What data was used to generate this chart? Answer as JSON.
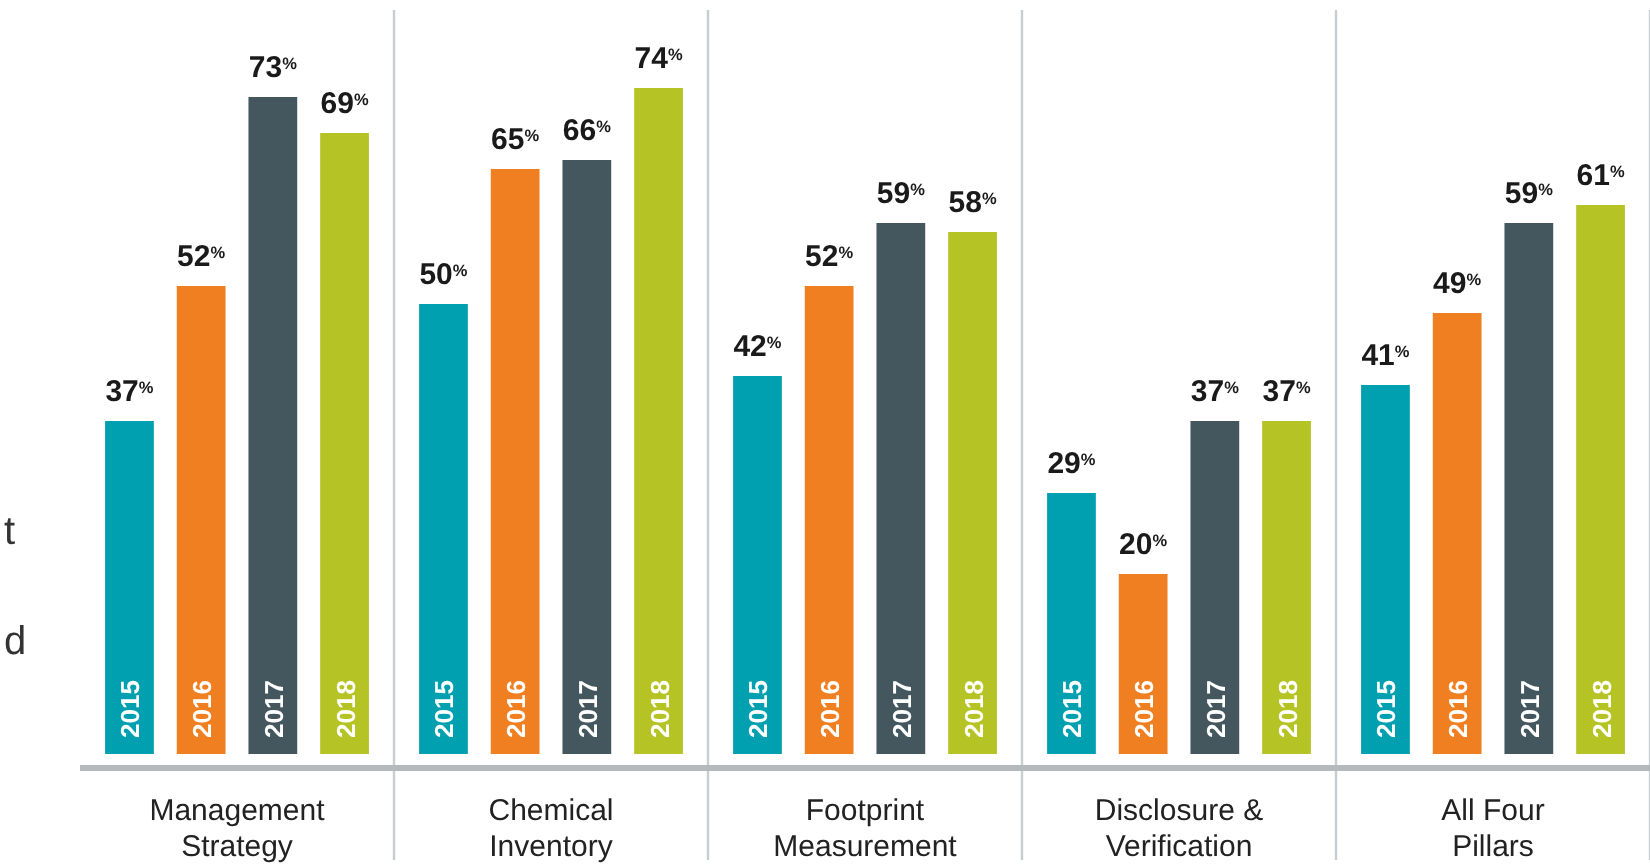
{
  "chart_data": {
    "type": "bar",
    "categories": [
      "Management Strategy",
      "Chemical Inventory",
      "Footprint Measurement",
      "Disclosure & Verification",
      "All Four Pillars"
    ],
    "series": [
      {
        "name": "2015",
        "color": "#00a0b0",
        "values": [
          37,
          50,
          42,
          29,
          41
        ],
        "value_labels": [
          "37$^{%}$",
          "50$^{%}$",
          "42$^{%}$",
          "29$^{%}$",
          "41$^{%}$"
        ]
      },
      {
        "name": "2016",
        "color": "#f07f22",
        "values": [
          52,
          65,
          52,
          20,
          49
        ],
        "value_labels": [
          "52$^{%}$",
          "65$^{%}$",
          "52$^{%}$",
          "20$^{%}$",
          "49$^{%}$"
        ]
      },
      {
        "name": "2017",
        "color": "#44575f",
        "values": [
          73,
          66,
          59,
          37,
          59
        ],
        "value_labels": [
          "73$^{%}$",
          "66$^{%}$",
          "59$^{%}$",
          "37$^{%}$",
          "59$^{%}$"
        ]
      },
      {
        "name": "2018",
        "color": "#b5c424",
        "values": [
          69,
          74,
          58,
          37,
          61
        ],
        "value_labels": [
          "69$^{%}$",
          "74$^{%}$",
          "58$^{%}$",
          "37$^{%}$",
          "61$^{%}$"
        ]
      }
    ],
    "annotations": [
      "t",
      "d"
    ]
  }
}
